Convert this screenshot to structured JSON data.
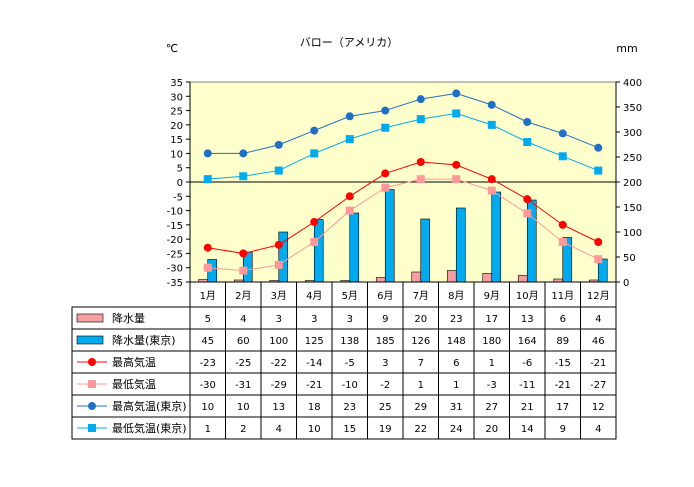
{
  "chart_data": {
    "type": "bar",
    "title": "バロー（アメリカ）",
    "y_left_unit": "℃",
    "y_right_unit": "mm",
    "ylim_left": [
      -35,
      35
    ],
    "ylim_right": [
      0,
      400
    ],
    "yticks_left": [
      35,
      30,
      25,
      20,
      15,
      10,
      5,
      0,
      -5,
      -10,
      -15,
      -20,
      -25,
      -30,
      -35
    ],
    "yticks_right": [
      400,
      350,
      300,
      250,
      200,
      150,
      100,
      50,
      0
    ],
    "categories": [
      "1月",
      "2月",
      "3月",
      "4月",
      "5月",
      "6月",
      "7月",
      "8月",
      "9月",
      "10月",
      "11月",
      "12月"
    ],
    "legend_placement": "table-left",
    "series": [
      {
        "name": "降水量",
        "type": "bar",
        "axis": "right",
        "color": "#f4a0a0",
        "values": [
          5,
          4,
          3,
          3,
          3,
          9,
          20,
          23,
          17,
          13,
          6,
          4
        ]
      },
      {
        "name": "降水量(東京)",
        "type": "bar",
        "axis": "right",
        "color": "#00aaee",
        "values": [
          45,
          60,
          100,
          125,
          138,
          185,
          126,
          148,
          180,
          164,
          89,
          46
        ]
      },
      {
        "name": "最高気温",
        "type": "line",
        "axis": "left",
        "color": "#ff0000",
        "marker": "circle",
        "values": [
          -23,
          -25,
          -22,
          -14,
          -5,
          3,
          7,
          6,
          1,
          -6,
          -15,
          -21
        ]
      },
      {
        "name": "最低気温",
        "type": "line",
        "axis": "left",
        "color": "#ff9999",
        "marker": "square",
        "values": [
          -30,
          -31,
          -29,
          -21,
          -10,
          -2,
          1,
          1,
          -3,
          -11,
          -21,
          -27
        ]
      },
      {
        "name": "最高気温(東京)",
        "type": "line",
        "axis": "left",
        "color": "#1f6fc5",
        "marker": "circle",
        "values": [
          10,
          10,
          13,
          18,
          23,
          25,
          29,
          31,
          27,
          21,
          17,
          12
        ]
      },
      {
        "name": "最低気温(東京)",
        "type": "line",
        "axis": "left",
        "color": "#00aaee",
        "marker": "square",
        "values": [
          1,
          2,
          4,
          10,
          15,
          19,
          22,
          24,
          20,
          14,
          9,
          4
        ]
      }
    ]
  },
  "colors": {
    "plot_background": "#ffffcc",
    "zero_line": "#000000"
  }
}
